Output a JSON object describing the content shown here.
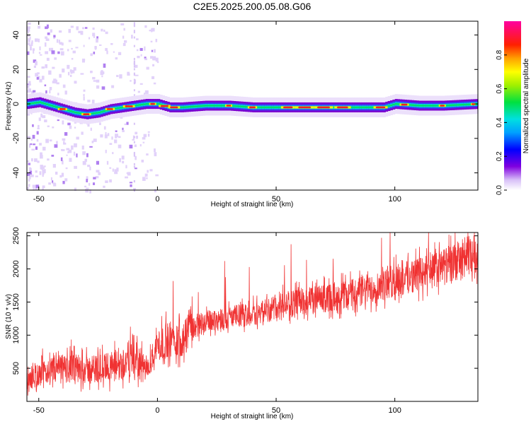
{
  "title": "C2E5.2025.200.05.08.G06",
  "colors": {
    "snr_line": "#f03232",
    "ridge_palette": [
      "#7a00d0",
      "#3a3cf5",
      "#00d8e0",
      "#00e060",
      "#f0f000",
      "#ff8a00",
      "#f02020"
    ]
  },
  "chart_data": [
    {
      "type": "heatmap",
      "name": "spectrogram",
      "xlabel": "Height of straight line (km)",
      "ylabel": "Frequency (Hz)",
      "xlim": [
        -55,
        135
      ],
      "ylim": [
        -50,
        48
      ],
      "xticks": [
        -50,
        0,
        50,
        100
      ],
      "yticks": [
        -40,
        -20,
        0,
        20,
        40
      ],
      "colorbar": {
        "label": "Normalized spectral amplitude",
        "range": [
          0.0,
          1.0
        ],
        "ticks": [
          "0.0",
          "0.2",
          "0.4",
          "0.6",
          "0.8"
        ],
        "tick_values": [
          0.0,
          0.2,
          0.4,
          0.6,
          0.8
        ]
      },
      "ridge": {
        "height_km": [
          -55,
          -50,
          -45,
          -40,
          -35,
          -30,
          -25,
          -20,
          -15,
          -10,
          -5,
          0,
          5,
          10,
          20,
          30,
          40,
          50,
          60,
          70,
          80,
          85,
          90,
          95,
          100,
          110,
          120,
          135
        ],
        "frequency_hz": [
          0,
          1,
          -1,
          -3,
          -5,
          -6,
          -5,
          -3,
          -2,
          -1,
          0,
          0,
          -2,
          -2,
          -1,
          -1,
          -2,
          -2,
          -2,
          -2,
          -2,
          -2,
          -2,
          -2,
          0,
          -1,
          -1,
          0
        ]
      }
    },
    {
      "type": "line",
      "name": "snr",
      "xlabel": "Height of straight line (km)",
      "ylabel": "SNR (10 * v/v)",
      "xlim": [
        -55,
        135
      ],
      "ylim": [
        0,
        2550
      ],
      "xticks": [
        -50,
        0,
        50,
        100
      ],
      "yticks": [
        500,
        1000,
        1500,
        2000,
        2500
      ],
      "series": [
        {
          "x": [
            -55,
            -50,
            -45,
            -40,
            -35,
            -30,
            -25,
            -20,
            -15,
            -10,
            -5,
            0,
            5,
            10,
            15,
            20,
            30,
            40,
            50,
            60,
            70,
            80,
            90,
            100,
            110,
            120,
            130,
            135
          ],
          "y": [
            300,
            400,
            450,
            500,
            500,
            480,
            500,
            520,
            550,
            700,
            450,
            850,
            950,
            950,
            1100,
            1200,
            1270,
            1320,
            1420,
            1500,
            1550,
            1620,
            1700,
            1820,
            1920,
            2020,
            2180,
            2250
          ]
        }
      ]
    }
  ]
}
